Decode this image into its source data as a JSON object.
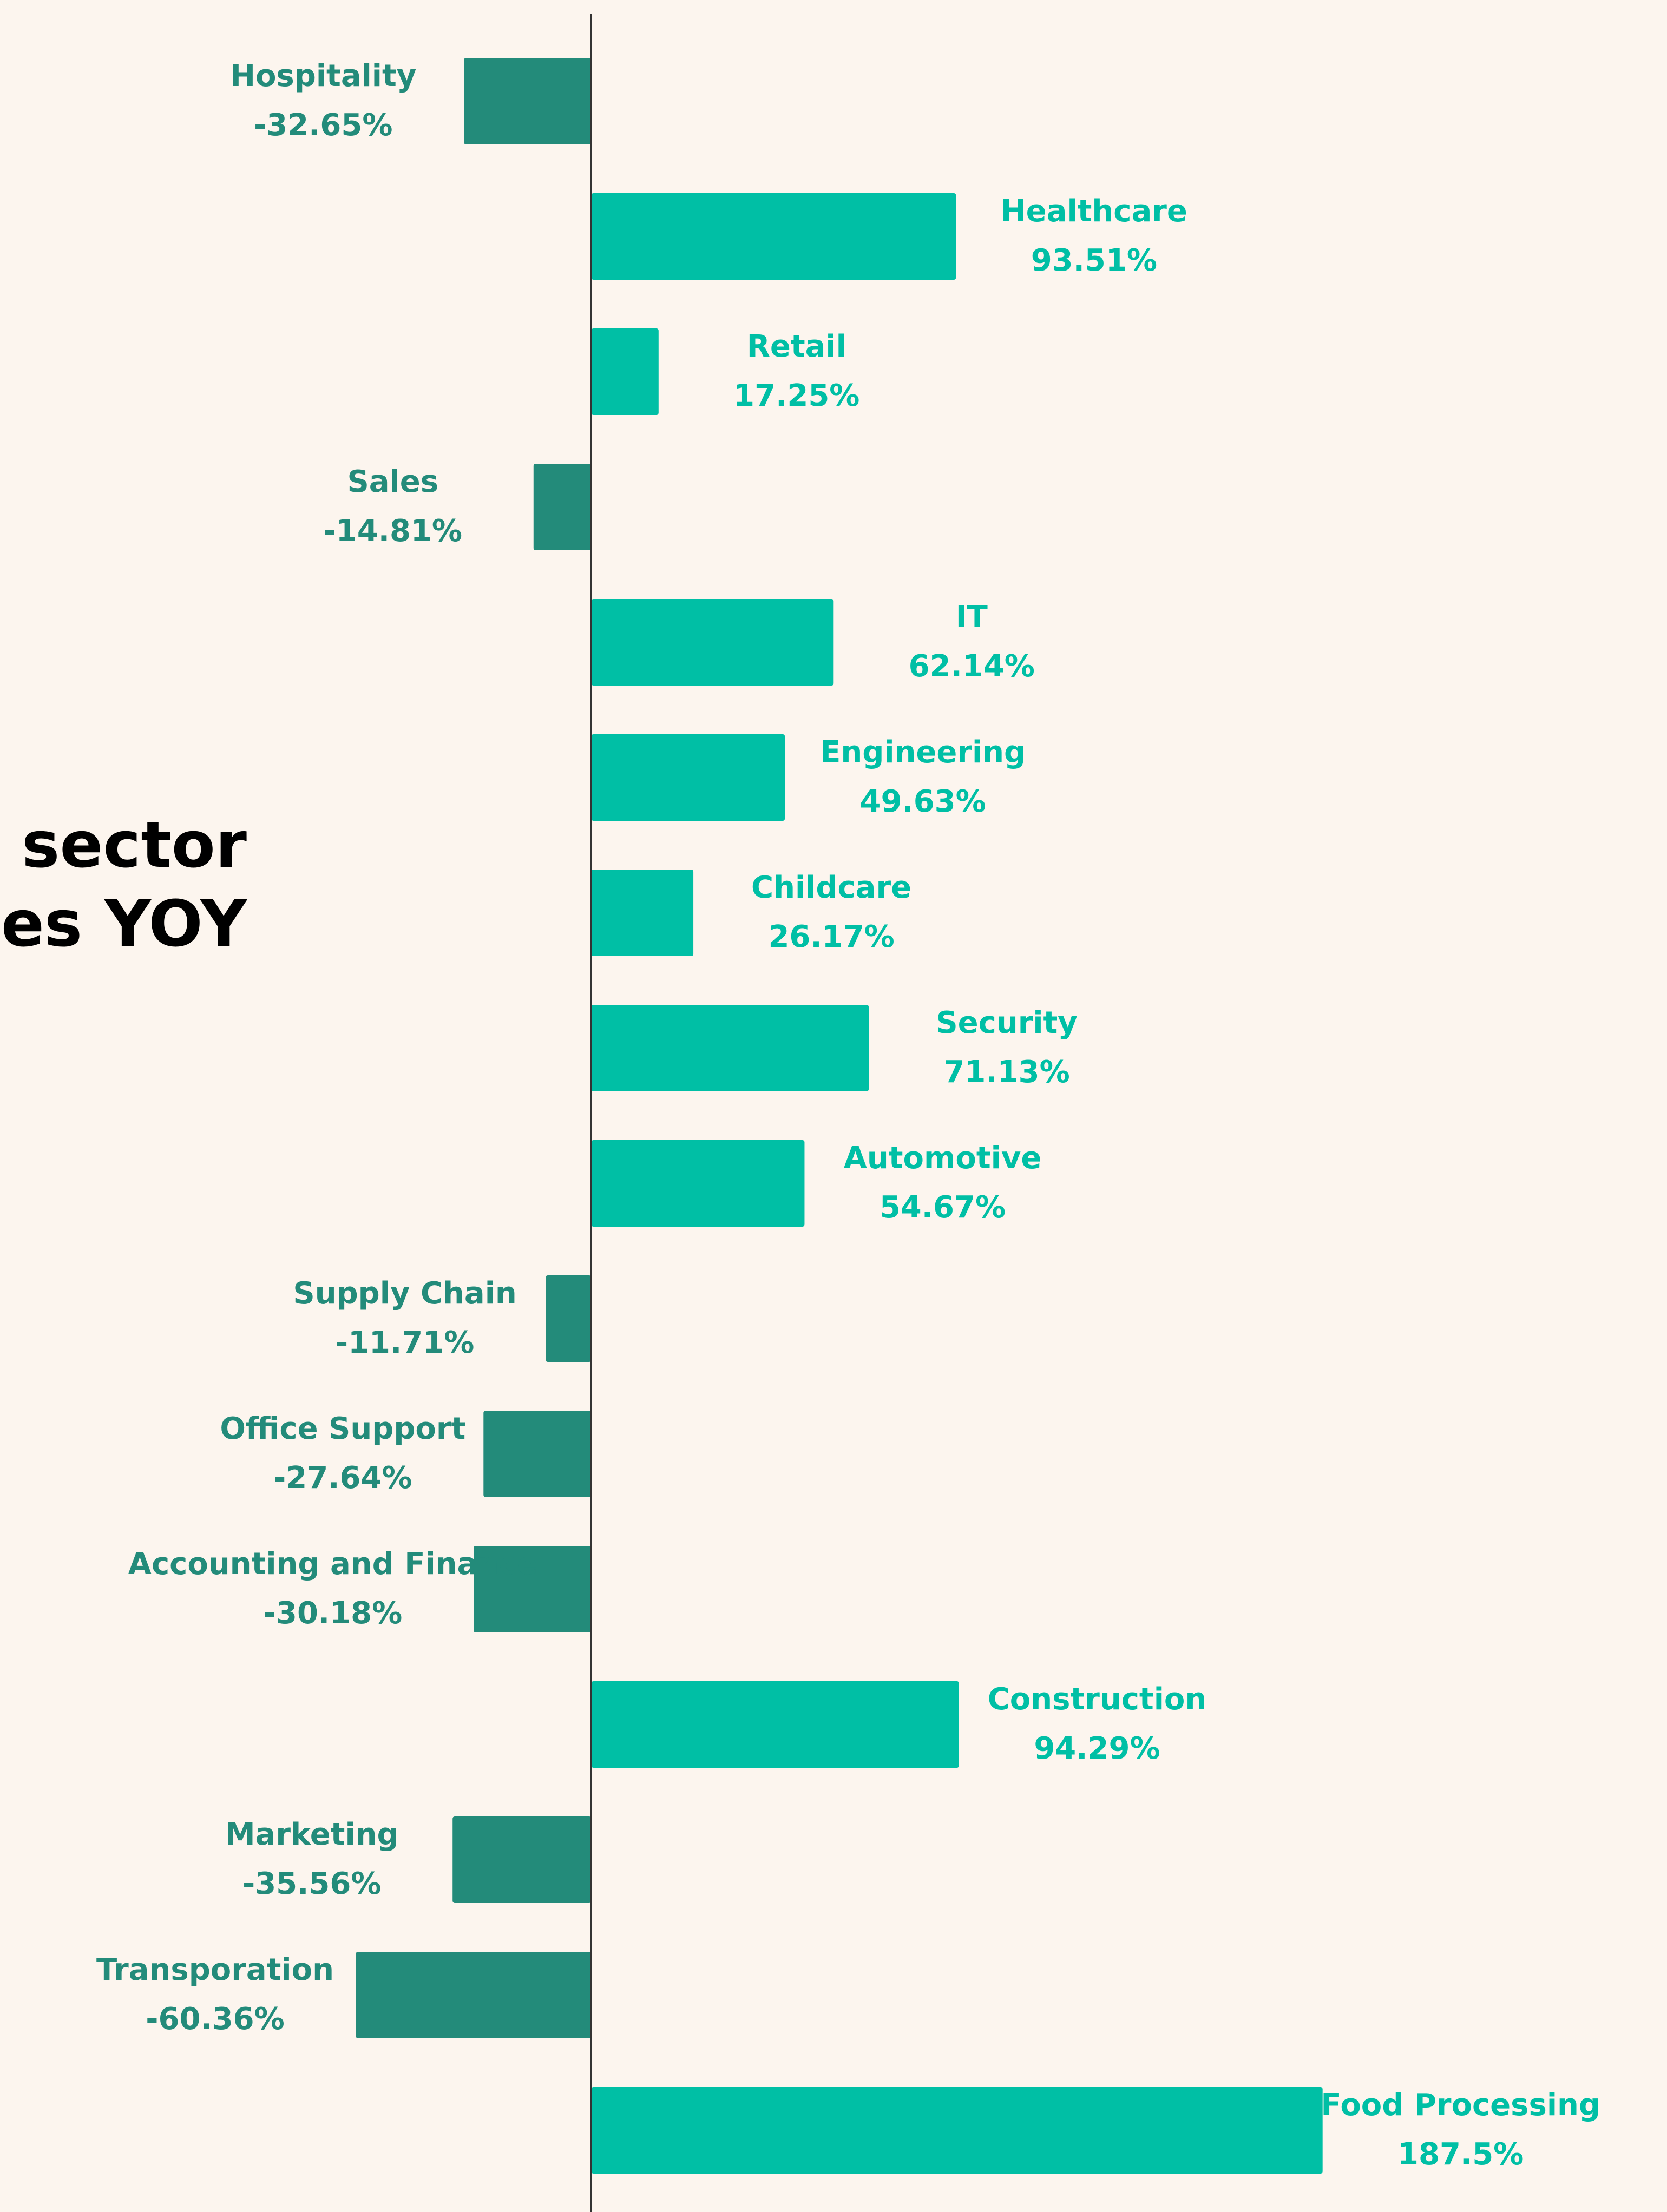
{
  "chart_data": {
    "type": "bar",
    "orientation": "horizontal",
    "title_lines": [
      "o sector",
      "ues YOY"
    ],
    "categories": [
      "Hospitality",
      "Healthcare",
      "Retail",
      "Sales",
      "IT",
      "Engineering",
      "Childcare",
      "Security",
      "Automotive",
      "Supply Chain",
      "Office Support",
      "Accounting and Finance",
      "Construction",
      "Marketing",
      "Transporation",
      "Food Processing"
    ],
    "values": [
      -32.65,
      93.51,
      17.25,
      -14.81,
      62.14,
      49.63,
      26.17,
      71.13,
      54.67,
      -11.71,
      -27.64,
      -30.18,
      94.29,
      -35.56,
      -60.36,
      187.5
    ],
    "value_labels": [
      "-32.65%",
      "93.51%",
      "17.25%",
      "-14.81%",
      "62.14%",
      "49.63%",
      "26.17%",
      "71.13%",
      "54.67%",
      "-11.71%",
      "-27.64%",
      "-30.18%",
      "94.29%",
      "-35.56%",
      "-60.36%",
      "187.5%"
    ],
    "positive_color": "#00bfa5",
    "negative_color": "#238b7a",
    "xlim": [
      -151.6,
      275.8
    ]
  }
}
